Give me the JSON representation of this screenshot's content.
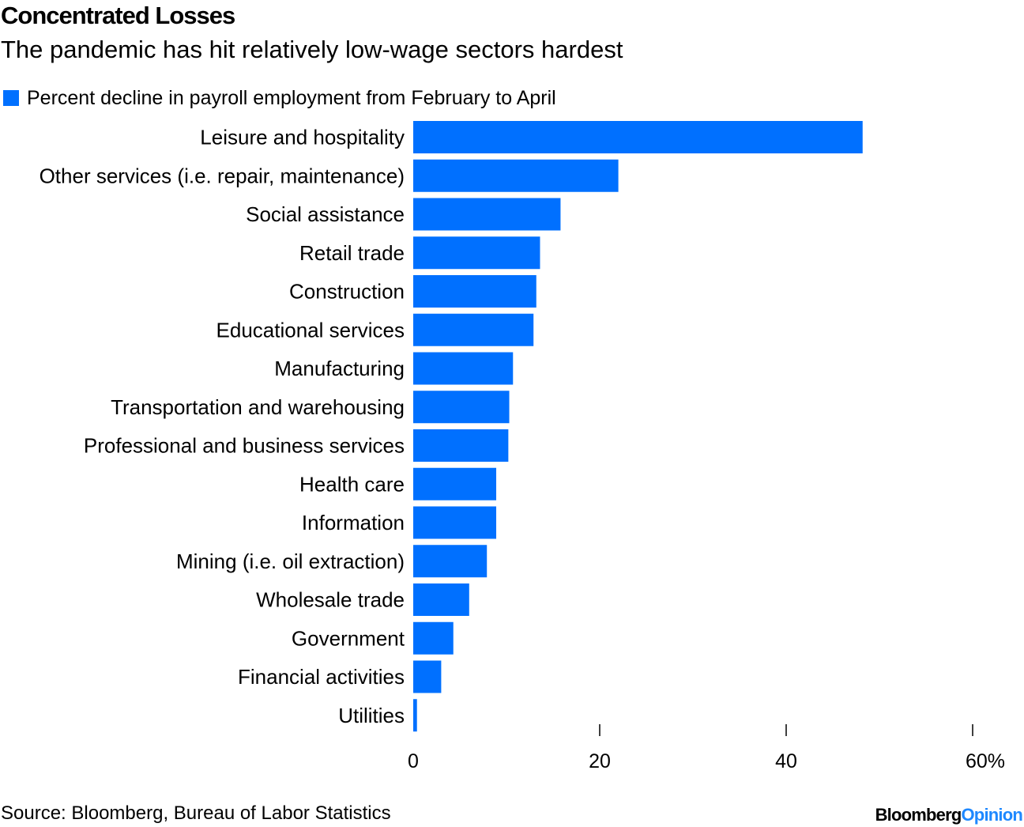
{
  "title": "Concentrated Losses",
  "subtitle": "The pandemic has hit relatively low-wage sectors hardest",
  "source": "Source: Bloomberg, Bureau of Labor Statistics",
  "brand": {
    "name": "Bloomberg",
    "suffix": "Opinion"
  },
  "colors": {
    "bar": "#0070ff",
    "brand_accent": "#1e88ff",
    "text": "#000000"
  },
  "chart_data": {
    "type": "bar",
    "orientation": "horizontal",
    "title": "Concentrated Losses",
    "subtitle": "The pandemic has hit relatively low-wage sectors hardest",
    "legend": {
      "entries": [
        "Percent decline in payroll employment from February to April"
      ],
      "placement": "top-left"
    },
    "xlabel": "",
    "ylabel": "",
    "xlim": [
      0,
      60
    ],
    "x_ticks": [
      0,
      20,
      40,
      60
    ],
    "x_tick_labels": [
      "0",
      "20",
      "40",
      "60%"
    ],
    "grid": false,
    "categories": [
      "Leisure and hospitality",
      "Other services (i.e. repair, maintenance)",
      "Social assistance",
      "Retail trade",
      "Construction",
      "Educational services",
      "Manufacturing",
      "Transportation and warehousing",
      "Professional and business services",
      "Health care",
      "Information",
      "Mining (i.e. oil extraction)",
      "Wholesale trade",
      "Government",
      "Financial activities",
      "Utilities"
    ],
    "series": [
      {
        "name": "Percent decline in payroll employment from February to April",
        "values": [
          48.2,
          22.0,
          15.8,
          13.6,
          13.2,
          12.9,
          10.7,
          10.3,
          10.2,
          8.9,
          8.9,
          7.9,
          6.0,
          4.3,
          3.0,
          0.4
        ]
      }
    ]
  }
}
